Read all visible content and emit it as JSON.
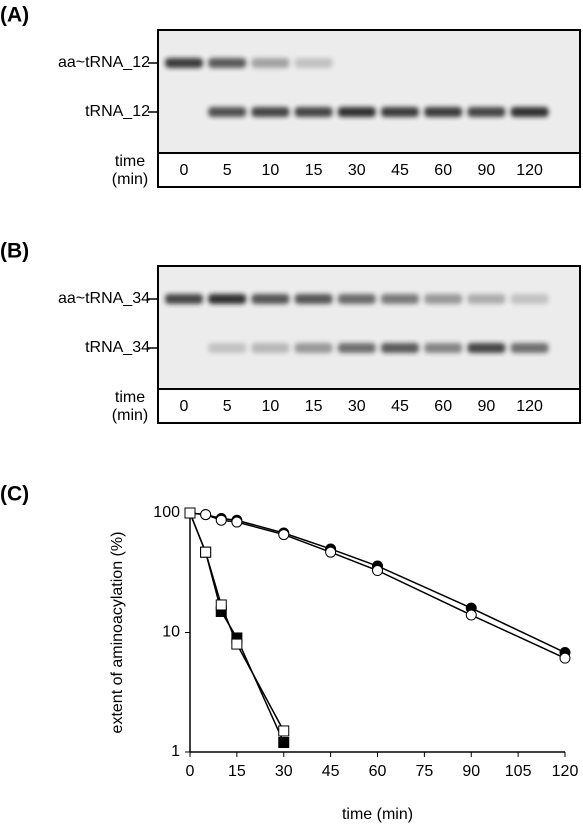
{
  "panels": [
    {
      "label": "(A)",
      "bands": [
        "aa~tRNA_12",
        "tRNA_12"
      ],
      "row_label": [
        "time",
        "(min)"
      ],
      "lanes": [
        "0",
        "5",
        "10",
        "15",
        "30",
        "45",
        "60",
        "90",
        "120"
      ]
    },
    {
      "label": "(B)",
      "bands": [
        "aa~tRNA_34",
        "tRNA_34"
      ],
      "row_label": [
        "time",
        "(min)"
      ],
      "lanes": [
        "0",
        "5",
        "10",
        "15",
        "30",
        "45",
        "60",
        "90",
        "120"
      ]
    }
  ],
  "chart_data": {
    "type": "line",
    "panel_label": "(C)",
    "xlabel": "time (min)",
    "ylabel": "extent of aminoacylation (%)",
    "xlim": [
      0,
      120
    ],
    "xticks": [
      0,
      15,
      30,
      45,
      60,
      75,
      90,
      105,
      120
    ],
    "ylim": [
      1,
      100
    ],
    "yticks": [
      1,
      10,
      100
    ],
    "log_y": true,
    "series": [
      {
        "color": "#000000",
        "marker": "circle",
        "marker_fill": "#000000",
        "x": [
          0,
          5,
          10,
          15,
          30,
          45,
          60,
          90,
          120
        ],
        "values": [
          100,
          97,
          90,
          87,
          68,
          50,
          36,
          16,
          6.8
        ]
      },
      {
        "color": "#000000",
        "marker": "circle",
        "marker_fill": "#ffffff",
        "x": [
          0,
          5,
          10,
          15,
          30,
          45,
          60,
          90,
          120
        ],
        "values": [
          100,
          97,
          87,
          84,
          66,
          47,
          33,
          14,
          6.1
        ]
      },
      {
        "color": "#000000",
        "marker": "square",
        "marker_fill": "#000000",
        "x": [
          0,
          5,
          10,
          15,
          30
        ],
        "values": [
          100,
          47,
          15,
          9,
          1.2
        ]
      },
      {
        "color": "#000000",
        "marker": "square",
        "marker_fill": "#ffffff",
        "x": [
          0,
          5,
          10,
          15,
          30
        ],
        "values": [
          100,
          47,
          17,
          8,
          1.5
        ]
      }
    ]
  }
}
